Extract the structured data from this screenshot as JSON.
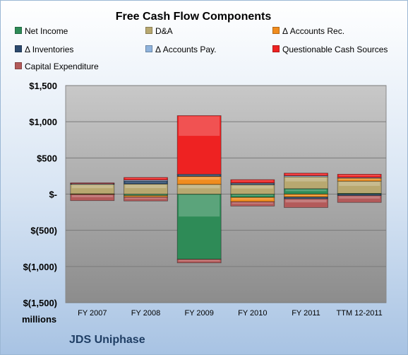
{
  "chart_data": {
    "type": "bar",
    "stacked": true,
    "title": "Free Cash Flow Components",
    "ylabel": "millions",
    "xlabel": "",
    "ylim": [
      -1500,
      1500
    ],
    "yticks": [
      1500,
      1000,
      500,
      0,
      -500,
      -1000,
      -1500
    ],
    "ytick_labels": [
      "$1,500",
      "$1,000",
      "$500",
      "$-",
      "$(500)",
      "$(1,000)",
      "$(1,500)"
    ],
    "categories": [
      "FY 2007",
      "FY 2008",
      "FY 2009",
      "FY 2010",
      "FY 2011",
      "TTM 12-2011"
    ],
    "grid": true,
    "legend_position": "top",
    "series": [
      {
        "name": "Net Income",
        "color": "#2e8b57",
        "values": [
          5,
          -20,
          -900,
          -45,
          75,
          10
        ]
      },
      {
        "name": "D&A",
        "color": "#b8a870",
        "values": [
          130,
          140,
          135,
          130,
          165,
          170
        ]
      },
      {
        "name": "Δ Accounts Rec.",
        "color": "#f08c1e",
        "values": [
          -5,
          -20,
          110,
          -60,
          -40,
          40
        ]
      },
      {
        "name": "Δ Inventories",
        "color": "#2c4a6e",
        "values": [
          10,
          40,
          20,
          15,
          -25,
          -20
        ]
      },
      {
        "name": "Δ Accounts Pay.",
        "color": "#8fb3dc",
        "values": [
          5,
          15,
          10,
          10,
          15,
          10
        ]
      },
      {
        "name": "Questionable Cash Sources",
        "color": "#ee2222",
        "values": [
          5,
          35,
          810,
          45,
          35,
          45
        ]
      },
      {
        "name": "Capital Expenditure",
        "color": "#b35a5a",
        "values": [
          -85,
          -55,
          -50,
          -60,
          -120,
          -95
        ]
      }
    ]
  },
  "footer": {
    "company": "JDS Uniphase"
  }
}
